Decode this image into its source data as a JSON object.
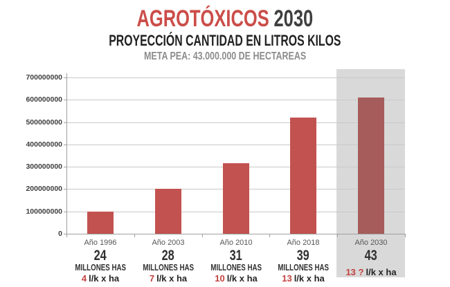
{
  "header": {
    "title_red": "AGROTÓXICOS",
    "title_dark": "2030",
    "subtitle": "PROYECCIÓN CANTIDAD EN LITROS KILOS",
    "meta": "META PEA: 43.000.000 DE HECTAREAS"
  },
  "colors": {
    "bar": "#c25250",
    "bar_highlight": "#a65c5a",
    "panel": "#d9d9d9",
    "grid": "#c9c9c9",
    "axis": "#9f9f9f",
    "title_red": "#cb4d49",
    "title_dark": "#3f3f3f",
    "subtitle": "#222222",
    "meta": "#8c8c8c",
    "rate_red": "#c2423f"
  },
  "chart_data": {
    "type": "bar",
    "title": "AGROTÓXICOS 2030 — PROYECCIÓN CANTIDAD EN LITROS KILOS",
    "xlabel": "",
    "ylabel": "",
    "ylim": [
      0,
      700000000
    ],
    "ytick_step": 100000000,
    "grid": true,
    "legend": false,
    "categories": [
      "Año 1996",
      "Año 2003",
      "Año 2010",
      "Año 2018",
      "Año 2030"
    ],
    "values": [
      100000000,
      200000000,
      315000000,
      520000000,
      610000000
    ],
    "highlight_index": 4,
    "category_details": [
      {
        "year": "Año 1996",
        "amount": "24",
        "unit": "MILLONES HAS",
        "rate": "4",
        "rate_unit": "l/k x ha"
      },
      {
        "year": "Año 2003",
        "amount": "28",
        "unit": "MILLONES HAS",
        "rate": "7",
        "rate_unit": "l/k x ha"
      },
      {
        "year": "Año 2010",
        "amount": "31",
        "unit": "MILLONES HAS",
        "rate": "10",
        "rate_unit": "l/k x ha"
      },
      {
        "year": "Año 2018",
        "amount": "39",
        "unit": "MILLONES HAS",
        "rate": "13",
        "rate_unit": "l/k x ha"
      },
      {
        "year": "Año 2030",
        "amount": "43",
        "unit": null,
        "rate": "13 ?",
        "rate_unit": "l/k x ha"
      }
    ]
  }
}
